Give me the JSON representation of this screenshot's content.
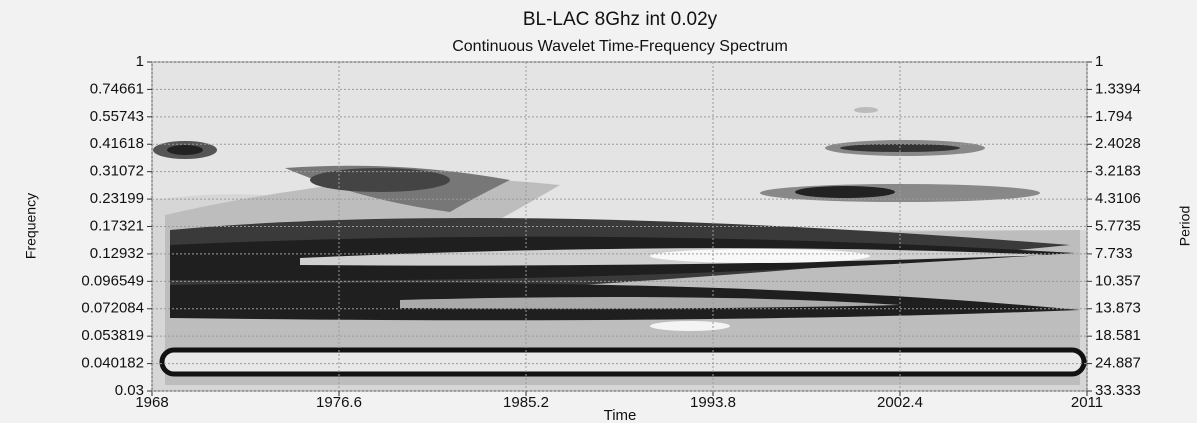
{
  "chart_data": {
    "type": "spectrum",
    "title": "BL-LAC 8Ghz int 0.02y",
    "subtitle": "Continuous Wavelet Time-Frequency Spectrum",
    "xlabel": "Time",
    "ylabel": "Frequency",
    "y2label": "Period",
    "xlim": [
      1968,
      2011
    ],
    "xticks": [
      1968,
      1976.6,
      1985.2,
      1993.8,
      2002.4,
      2011
    ],
    "ylim": [
      0.03,
      1
    ],
    "yscale": "log",
    "yticks": [
      0.03,
      0.040182,
      0.053819,
      0.072084,
      0.096549,
      0.12932,
      0.17321,
      0.23199,
      0.31072,
      0.41618,
      0.55743,
      0.74661,
      1
    ],
    "y2lim": [
      33.333,
      1
    ],
    "y2scale": "log",
    "y2ticks": [
      33.333,
      24.887,
      18.581,
      13.873,
      10.357,
      7.733,
      5.7735,
      4.3106,
      3.2183,
      2.4028,
      1.794,
      1.3394,
      1
    ],
    "grid": true
  }
}
